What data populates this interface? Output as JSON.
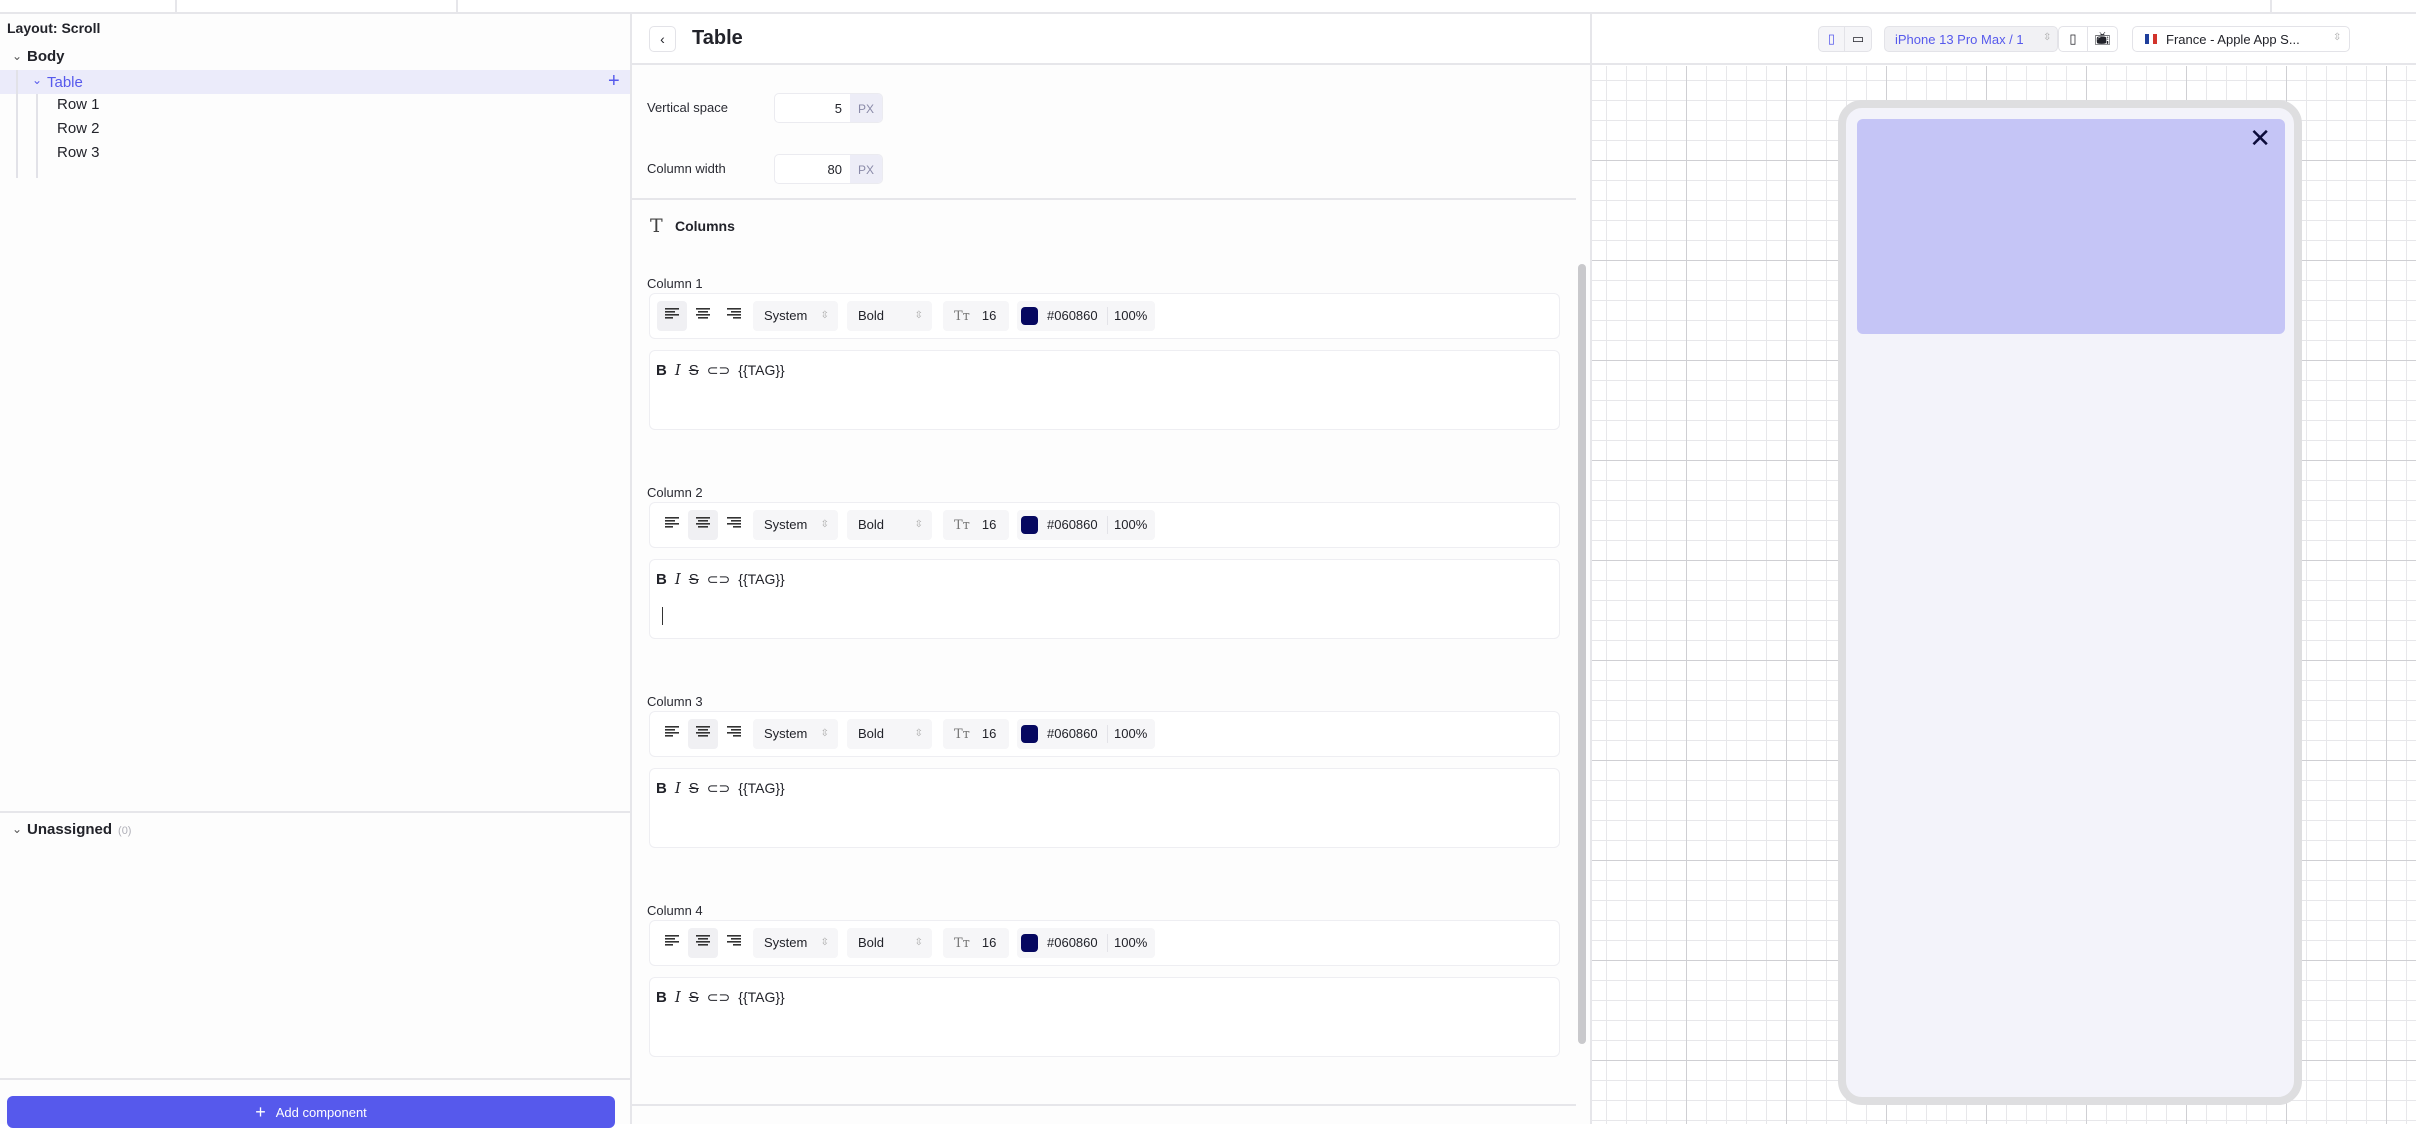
{
  "left": {
    "layout_title": "Layout: Scroll",
    "tree": {
      "body": "Body",
      "table": "Table",
      "rows": [
        "Row 1",
        "Row 2",
        "Row 3"
      ]
    },
    "unassigned": {
      "label": "Unassigned",
      "count": "(0)"
    },
    "add_component": "Add component"
  },
  "mid": {
    "title": "Table",
    "vertical_space": {
      "label": "Vertical space",
      "value": "5",
      "unit": "PX"
    },
    "column_width": {
      "label": "Column width",
      "value": "80",
      "unit": "PX"
    },
    "columns_heading": "Columns",
    "columns": [
      {
        "label": "Column 1",
        "align": "left",
        "font": "System",
        "weight": "Bold",
        "size": "16",
        "color": "#060860",
        "opacity": "100%",
        "tag": "{{TAG}}"
      },
      {
        "label": "Column 2",
        "align": "center",
        "font": "System",
        "weight": "Bold",
        "size": "16",
        "color": "#060860",
        "opacity": "100%",
        "tag": "{{TAG}}"
      },
      {
        "label": "Column 3",
        "align": "center",
        "font": "System",
        "weight": "Bold",
        "size": "16",
        "color": "#060860",
        "opacity": "100%",
        "tag": "{{TAG}}"
      },
      {
        "label": "Column 4",
        "align": "center",
        "font": "System",
        "weight": "Bold",
        "size": "16",
        "color": "#060860",
        "opacity": "100%",
        "tag": "{{TAG}}"
      }
    ]
  },
  "preview": {
    "device": "iPhone 13 Pro Max / 1",
    "locale": "France - Apple App S...",
    "banner_color": "#c5c5f6",
    "accent": "#5659ec"
  }
}
